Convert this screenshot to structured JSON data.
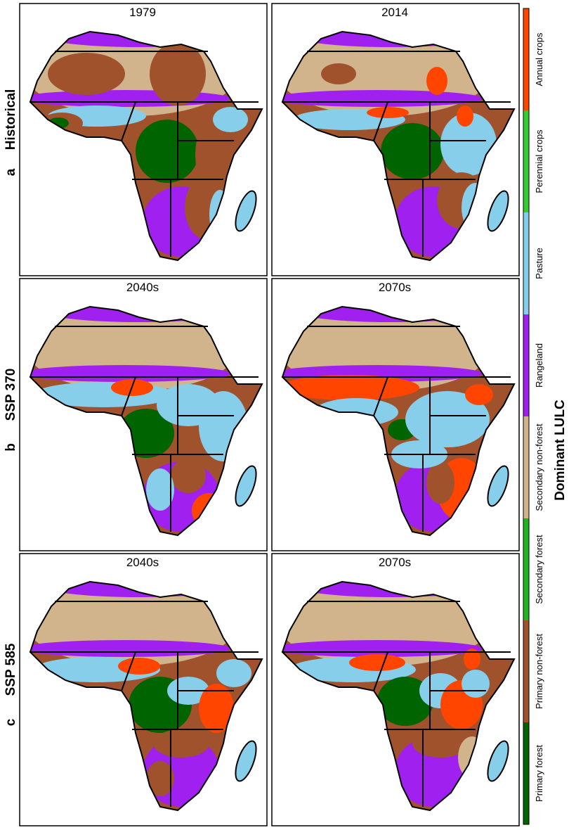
{
  "panels": [
    {
      "title": "1979"
    },
    {
      "title": "2014"
    },
    {
      "title": "2040s"
    },
    {
      "title": "2070s"
    },
    {
      "title": "2040s"
    },
    {
      "title": "2070s"
    }
  ],
  "rows": [
    {
      "letter": "a",
      "label": "Historical"
    },
    {
      "letter": "b",
      "label": "SSP 370"
    },
    {
      "letter": "c",
      "label": "SSP 585"
    }
  ],
  "legend": {
    "title": "Dominant LULC",
    "classes": [
      {
        "name": "Primary forest",
        "color": "#006400"
      },
      {
        "name": "Primary non-forest",
        "color": "#a0522d"
      },
      {
        "name": "Secondary forest",
        "color": "#22b322"
      },
      {
        "name": "Secondary non-forest",
        "color": "#d2b48c"
      },
      {
        "name": "Rangeland",
        "color": "#a020f0"
      },
      {
        "name": "Pasture",
        "color": "#87ceeb"
      },
      {
        "name": "Perennial crops",
        "color": "#33cc33"
      },
      {
        "name": "Annual crops",
        "color": "#ff4500"
      }
    ]
  }
}
